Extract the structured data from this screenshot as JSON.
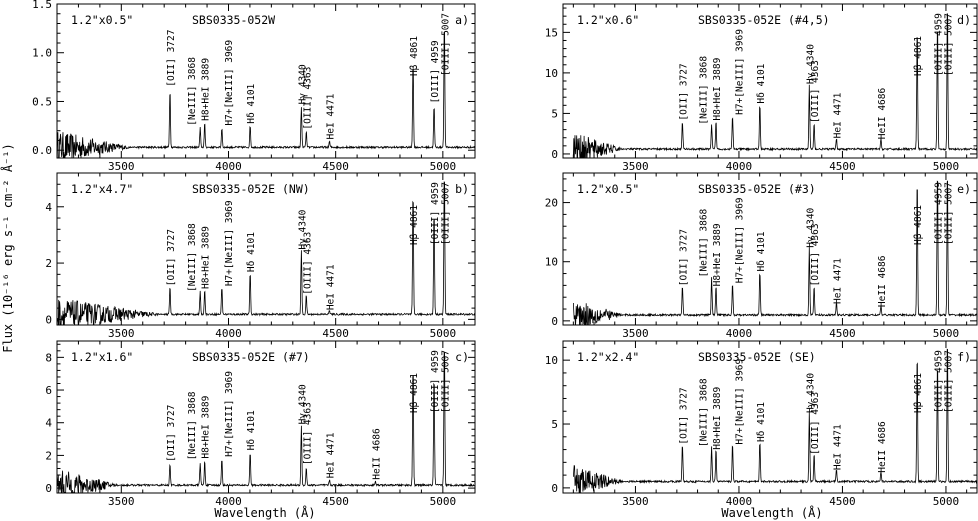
{
  "figure": {
    "xlabel": "Wavelength (Å)",
    "ylabel": "Flux (10⁻¹⁶ erg s⁻¹ cm⁻² Å⁻¹)"
  },
  "chart_data": [
    {
      "type": "line",
      "panel": "a)",
      "aperture": "1.2\"x0.5\"",
      "object": "SBS0335-052W",
      "xlim": [
        3200,
        5150
      ],
      "ylim": [
        -0.08,
        1.5
      ],
      "xticks": [
        3500,
        4000,
        4500,
        5000
      ],
      "yticks": [
        0.0,
        0.5,
        1.0,
        1.5
      ],
      "ytick_labels": [
        "0.0",
        "0.5",
        "1.0",
        "1.5"
      ],
      "noise_region": [
        3200,
        3560
      ],
      "continuum": 0.03,
      "lines": [
        {
          "label": "[OII] 3727",
          "wl": 3727,
          "peak": 0.6
        },
        {
          "label": "[NeIII] 3868",
          "wl": 3868,
          "peak": 0.2
        },
        {
          "label": "H8+HeI 3889",
          "wl": 3889,
          "peak": 0.25
        },
        {
          "label": "H7+[NeIII] 3969",
          "wl": 3969,
          "peak": 0.2
        },
        {
          "label": "Hδ 4101",
          "wl": 4101,
          "peak": 0.22
        },
        {
          "label": "Hγ 4340",
          "wl": 4340,
          "peak": 0.42
        },
        {
          "label": "[OIII] 4363",
          "wl": 4363,
          "peak": 0.16
        },
        {
          "label": "HeI 4471",
          "wl": 4471,
          "peak": 0.06
        },
        {
          "label": "Hβ 4861",
          "wl": 4861,
          "peak": 0.88
        },
        {
          "label": "[OIII] 4959",
          "wl": 4959,
          "peak": 0.43
        },
        {
          "label": "[OIII] 5007",
          "wl": 5007,
          "peak": 1.3
        }
      ]
    },
    {
      "type": "line",
      "panel": "b)",
      "aperture": "1.2\"x4.7\"",
      "object": "SBS0335-052E (NW)",
      "xlim": [
        3200,
        5150
      ],
      "ylim": [
        -0.2,
        5.2
      ],
      "xticks": [
        3500,
        4000,
        4500,
        5000
      ],
      "yticks": [
        0,
        2,
        4
      ],
      "ytick_labels": [
        "0",
        "2",
        "4"
      ],
      "noise_region": [
        3200,
        3700
      ],
      "continuum": 0.18,
      "lines": [
        {
          "label": "[OII] 3727",
          "wl": 3727,
          "peak": 1.0
        },
        {
          "label": "[NeIII] 3868",
          "wl": 3868,
          "peak": 0.8
        },
        {
          "label": "H8+HeI 3889",
          "wl": 3889,
          "peak": 0.9
        },
        {
          "label": "H7+[NeIII] 3969",
          "wl": 3969,
          "peak": 1.0
        },
        {
          "label": "Hδ 4101",
          "wl": 4101,
          "peak": 1.5
        },
        {
          "label": "Hγ 4340",
          "wl": 4340,
          "peak": 2.3
        },
        {
          "label": "[OIII] 4363",
          "wl": 4363,
          "peak": 0.7
        },
        {
          "label": "HeI 4471",
          "wl": 4471,
          "peak": 0.15
        },
        {
          "label": "Hβ 4861",
          "wl": 4861,
          "peak": 4.4
        },
        {
          "label": "[OIII] 4959",
          "wl": 4959,
          "peak": 3.7
        },
        {
          "label": "[OIII] 5007",
          "wl": 5007,
          "peak": 5.2
        }
      ]
    },
    {
      "type": "line",
      "panel": "c)",
      "aperture": "1.2\"x1.6\"",
      "object": "SBS0335-052E (#7)",
      "xlim": [
        3200,
        5150
      ],
      "ylim": [
        -0.3,
        9.0
      ],
      "xticks": [
        3500,
        4000,
        4500,
        5000
      ],
      "yticks": [
        0,
        2,
        4,
        6,
        8
      ],
      "ytick_labels": [
        "0",
        "2",
        "4",
        "6",
        "8"
      ],
      "noise_region": [
        3200,
        3500
      ],
      "continuum": 0.18,
      "lines": [
        {
          "label": "[OII] 3727",
          "wl": 3727,
          "peak": 1.3
        },
        {
          "label": "[NeIII] 3868",
          "wl": 3868,
          "peak": 1.4
        },
        {
          "label": "H8+HeI 3889",
          "wl": 3889,
          "peak": 1.5
        },
        {
          "label": "H7+[NeIII] 3969",
          "wl": 3969,
          "peak": 1.6
        },
        {
          "label": "Hδ 4101",
          "wl": 4101,
          "peak": 2.0
        },
        {
          "label": "Hγ 4340",
          "wl": 4340,
          "peak": 3.6
        },
        {
          "label": "[OIII] 4363",
          "wl": 4363,
          "peak": 1.1
        },
        {
          "label": "HeI 4471",
          "wl": 4471,
          "peak": 0.3
        },
        {
          "label": "HeII 4686",
          "wl": 4686,
          "peak": 0.2
        },
        {
          "label": "Hβ 4861",
          "wl": 4861,
          "peak": 7.4
        },
        {
          "label": "[OIII] 4959",
          "wl": 4959,
          "peak": 6.8
        },
        {
          "label": "[OIII] 5007",
          "wl": 5007,
          "peak": 9.0
        }
      ]
    },
    {
      "type": "line",
      "panel": "d)",
      "aperture": "1.2\"x0.6\"",
      "object": "SBS0335-052E (#4,5)",
      "xlim": [
        3150,
        5150
      ],
      "ylim": [
        -0.5,
        18.5
      ],
      "xticks": [
        3500,
        4000,
        4500,
        5000
      ],
      "yticks": [
        0,
        5,
        10,
        15
      ],
      "ytick_labels": [
        "0",
        "5",
        "10",
        "15"
      ],
      "noise_region": [
        3200,
        3450
      ],
      "continuum": 0.6,
      "lines": [
        {
          "label": "[OII] 3727",
          "wl": 3727,
          "peak": 3.5
        },
        {
          "label": "[NeIII] 3868",
          "wl": 3868,
          "peak": 3.0
        },
        {
          "label": "H8+HeI 3889",
          "wl": 3889,
          "peak": 3.5
        },
        {
          "label": "H7+[NeIII] 3969",
          "wl": 3969,
          "peak": 4.2
        },
        {
          "label": "Hδ 4101",
          "wl": 4101,
          "peak": 5.6
        },
        {
          "label": "Hγ 4340",
          "wl": 4340,
          "peak": 8.0
        },
        {
          "label": "[OIII] 4363",
          "wl": 4363,
          "peak": 3.2
        },
        {
          "label": "HeI 4471",
          "wl": 4471,
          "peak": 1.3
        },
        {
          "label": "HeII 4686",
          "wl": 4686,
          "peak": 1.2
        },
        {
          "label": "Hβ 4861",
          "wl": 4861,
          "peak": 15.2
        },
        {
          "label": "[OIII] 4959",
          "wl": 4959,
          "peak": 16.0
        },
        {
          "label": "[OIII] 5007",
          "wl": 5007,
          "peak": 18.5
        }
      ]
    },
    {
      "type": "line",
      "panel": "e)",
      "aperture": "1.2\"x0.5\"",
      "object": "SBS0335-052E (#3)",
      "xlim": [
        3150,
        5150
      ],
      "ylim": [
        -0.7,
        25.0
      ],
      "xticks": [
        3500,
        4000,
        4500,
        5000
      ],
      "yticks": [
        0,
        10,
        20
      ],
      "ytick_labels": [
        "0",
        "10",
        "20"
      ],
      "noise_region": [
        3200,
        3450
      ],
      "continuum": 1.0,
      "lines": [
        {
          "label": "[OII] 3727",
          "wl": 3727,
          "peak": 5.0
        },
        {
          "label": "[NeIII] 3868",
          "wl": 3868,
          "peak": 6.5
        },
        {
          "label": "H8+HeI 3889",
          "wl": 3889,
          "peak": 5.0
        },
        {
          "label": "H7+[NeIII] 3969",
          "wl": 3969,
          "peak": 5.5
        },
        {
          "label": "Hδ 4101",
          "wl": 4101,
          "peak": 7.5
        },
        {
          "label": "Hγ 4340",
          "wl": 4340,
          "peak": 11.5
        },
        {
          "label": "[OIII] 4363",
          "wl": 4363,
          "peak": 5.0
        },
        {
          "label": "HeI 4471",
          "wl": 4471,
          "peak": 2.0
        },
        {
          "label": "HeII 4686",
          "wl": 4686,
          "peak": 1.5
        },
        {
          "label": "Hβ 4861",
          "wl": 4861,
          "peak": 23.5
        },
        {
          "label": "[OIII] 4959",
          "wl": 4959,
          "peak": 25.0
        },
        {
          "label": "[OIII] 5007",
          "wl": 5007,
          "peak": 25.0
        }
      ]
    },
    {
      "type": "line",
      "panel": "f)",
      "aperture": "1.2\"x2.4\"",
      "object": "SBS0335-052E (SE)",
      "xlim": [
        3150,
        5150
      ],
      "ylim": [
        -0.4,
        11.5
      ],
      "xticks": [
        3500,
        4000,
        4500,
        5000
      ],
      "yticks": [
        0,
        5,
        10
      ],
      "ytick_labels": [
        "0",
        "5",
        "10"
      ],
      "noise_region": [
        3200,
        3450
      ],
      "continuum": 0.5,
      "lines": [
        {
          "label": "[OII] 3727",
          "wl": 3727,
          "peak": 3.0
        },
        {
          "label": "[NeIII] 3868",
          "wl": 3868,
          "peak": 2.8
        },
        {
          "label": "H8+HeI 3889",
          "wl": 3889,
          "peak": 2.6
        },
        {
          "label": "H7+[NeIII] 3969",
          "wl": 3969,
          "peak": 3.0
        },
        {
          "label": "Hδ 4101",
          "wl": 4101,
          "peak": 3.2
        },
        {
          "label": "Hγ 4340",
          "wl": 4340,
          "peak": 5.5
        },
        {
          "label": "[OIII] 4363",
          "wl": 4363,
          "peak": 2.2
        },
        {
          "label": "HeI 4471",
          "wl": 4471,
          "peak": 1.0
        },
        {
          "label": "HeII 4686",
          "wl": 4686,
          "peak": 0.8
        },
        {
          "label": "Hβ 4861",
          "wl": 4861,
          "peak": 10.2
        },
        {
          "label": "[OIII] 4959",
          "wl": 4959,
          "peak": 9.6
        },
        {
          "label": "[OIII] 5007",
          "wl": 5007,
          "peak": 11.5
        }
      ]
    }
  ]
}
